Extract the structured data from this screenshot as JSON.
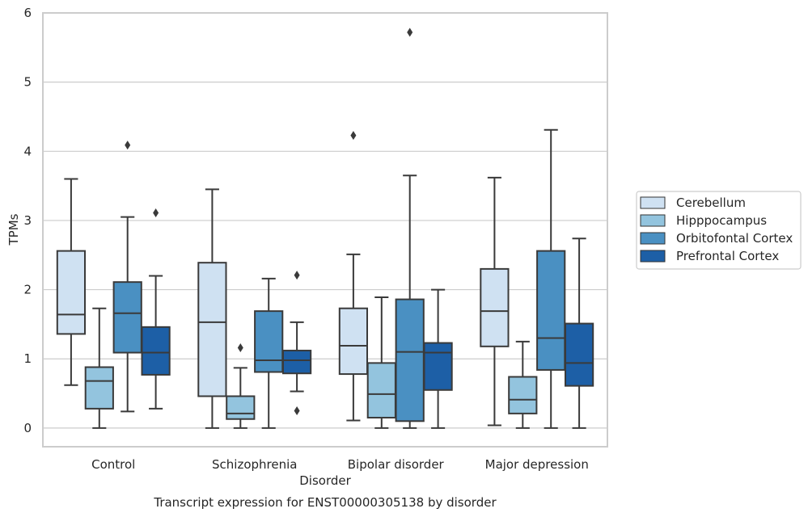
{
  "chart_data": {
    "type": "box",
    "title": "",
    "caption": "Transcript expression for ENST00000305138 by disorder",
    "xlabel": "Disorder",
    "ylabel": "TPMs",
    "ylim": [
      -0.27,
      6
    ],
    "yticks": [
      "0",
      "1",
      "2",
      "3",
      "4",
      "5",
      "6"
    ],
    "grid": true,
    "legend_position": "right",
    "categories": [
      "Control",
      "Schizophrenia",
      "Bipolar disorder",
      "Major depression"
    ],
    "series": [
      {
        "name": "Cerebellum",
        "color": "#cfe1f2",
        "boxes": [
          {
            "whislo": 0.62,
            "q1": 1.36,
            "med": 1.64,
            "q3": 2.56,
            "whishi": 3.6,
            "fliers": []
          },
          {
            "whislo": 0.0,
            "q1": 0.46,
            "med": 1.53,
            "q3": 2.39,
            "whishi": 3.45,
            "fliers": []
          },
          {
            "whislo": 0.11,
            "q1": 0.78,
            "med": 1.19,
            "q3": 1.73,
            "whishi": 2.51,
            "fliers": [
              4.23
            ]
          },
          {
            "whislo": 0.04,
            "q1": 1.18,
            "med": 1.69,
            "q3": 2.3,
            "whishi": 3.62,
            "fliers": []
          }
        ]
      },
      {
        "name": "Hipppocampus",
        "color": "#93c4de",
        "boxes": [
          {
            "whislo": 0.0,
            "q1": 0.28,
            "med": 0.68,
            "q3": 0.88,
            "whishi": 1.73,
            "fliers": []
          },
          {
            "whislo": 0.0,
            "q1": 0.13,
            "med": 0.21,
            "q3": 0.46,
            "whishi": 0.87,
            "fliers": [
              1.16
            ]
          },
          {
            "whislo": 0.0,
            "q1": 0.15,
            "med": 0.49,
            "q3": 0.94,
            "whishi": 1.89,
            "fliers": []
          },
          {
            "whislo": 0.0,
            "q1": 0.21,
            "med": 0.41,
            "q3": 0.74,
            "whishi": 1.25,
            "fliers": []
          }
        ]
      },
      {
        "name": "Orbitofontal Cortex",
        "color": "#4a90c2",
        "boxes": [
          {
            "whislo": 0.24,
            "q1": 1.09,
            "med": 1.66,
            "q3": 2.11,
            "whishi": 3.05,
            "fliers": [
              4.09
            ]
          },
          {
            "whislo": 0.0,
            "q1": 0.81,
            "med": 0.98,
            "q3": 1.69,
            "whishi": 2.16,
            "fliers": []
          },
          {
            "whislo": 0.0,
            "q1": 0.1,
            "med": 1.1,
            "q3": 1.86,
            "whishi": 3.65,
            "fliers": [
              5.72
            ]
          },
          {
            "whislo": 0.0,
            "q1": 0.84,
            "med": 1.3,
            "q3": 2.56,
            "whishi": 4.31,
            "fliers": []
          }
        ]
      },
      {
        "name": "Prefrontal Cortex",
        "color": "#1d5fa6",
        "boxes": [
          {
            "whislo": 0.28,
            "q1": 0.77,
            "med": 1.09,
            "q3": 1.46,
            "whishi": 2.2,
            "fliers": [
              3.11
            ]
          },
          {
            "whislo": 0.53,
            "q1": 0.79,
            "med": 0.98,
            "q3": 1.12,
            "whishi": 1.53,
            "fliers": [
              2.21,
              0.25
            ]
          },
          {
            "whislo": 0.0,
            "q1": 0.55,
            "med": 1.09,
            "q3": 1.23,
            "whishi": 2.0,
            "fliers": []
          },
          {
            "whislo": 0.0,
            "q1": 0.61,
            "med": 0.94,
            "q3": 1.51,
            "whishi": 2.74,
            "fliers": []
          }
        ]
      }
    ]
  }
}
